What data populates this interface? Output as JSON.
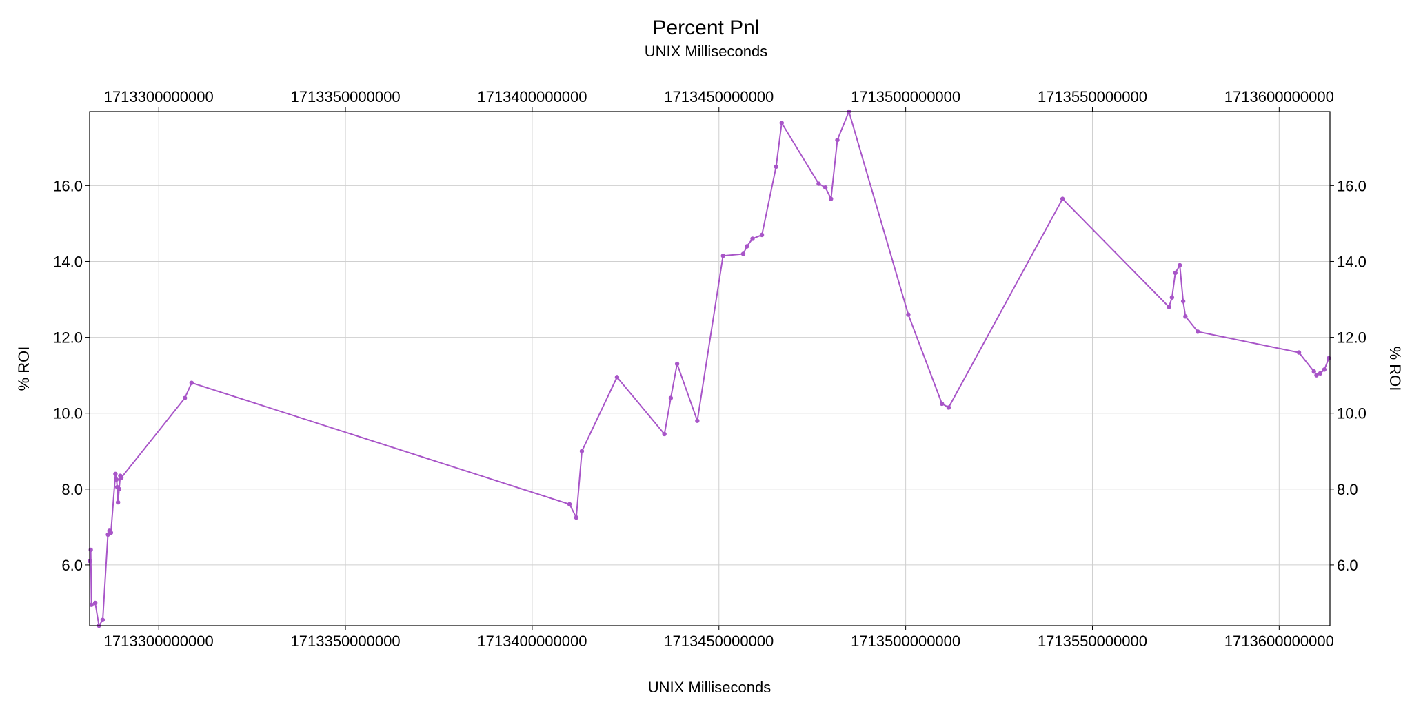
{
  "chart_data": {
    "type": "line",
    "title": "Percent Pnl",
    "subtitle": "UNIX Milliseconds",
    "xlabel": "UNIX Milliseconds",
    "ylabel": "% ROI",
    "ylabel_right": "% ROI",
    "xlim": [
      1713281500000,
      1713613600000
    ],
    "ylim": [
      4.4,
      17.95
    ],
    "x_ticks": [
      1713300000000,
      1713350000000,
      1713400000000,
      1713450000000,
      1713500000000,
      1713550000000,
      1713600000000
    ],
    "x_tick_labels": [
      "1713300000000",
      "1713350000000",
      "1713400000000",
      "1713450000000",
      "1713500000000",
      "1713550000000",
      "1713600000000"
    ],
    "y_ticks": [
      6.0,
      8.0,
      10.0,
      12.0,
      14.0,
      16.0
    ],
    "y_tick_labels": [
      "6.0",
      "8.0",
      "10.0",
      "12.0",
      "14.0",
      "16.0"
    ],
    "grid": true,
    "markers": true,
    "color": "#a855c8",
    "series": [
      {
        "x": [
          1713281600000,
          1713281800000,
          1713282000000,
          1713283000000,
          1713284000000,
          1713285000000,
          1713286400000,
          1713286800000,
          1713287200000,
          1713288400000,
          1713288700000,
          1713288900000,
          1713289100000,
          1713289400000,
          1713289700000,
          1713290000000,
          1713307000000,
          1713308800000,
          1713410000000,
          1713411800000,
          1713413300000,
          1713422700000,
          1713435400000,
          1713437100000,
          1713438800000,
          1713444200000,
          1713451100000,
          1713456500000,
          1713457500000,
          1713459000000,
          1713461500000,
          1713465300000,
          1713466800000,
          1713476700000,
          1713478500000,
          1713480000000,
          1713481700000,
          1713484800000,
          1713500700000,
          1713509700000,
          1713511500000,
          1713542000000,
          1713570500000,
          1713571300000,
          1713572200000,
          1713573400000,
          1713574300000,
          1713574900000,
          1713578200000,
          1713605300000,
          1713609300000,
          1713610000000,
          1713611000000,
          1713612100000,
          1713613300000
        ],
        "y": [
          6.1,
          6.4,
          4.95,
          5.0,
          4.4,
          4.55,
          6.8,
          6.9,
          6.85,
          8.4,
          8.25,
          8.05,
          7.65,
          8.0,
          8.35,
          8.3,
          10.4,
          10.8,
          7.6,
          7.25,
          9.0,
          10.95,
          9.45,
          10.4,
          11.3,
          9.8,
          14.15,
          14.2,
          14.4,
          14.6,
          14.7,
          16.5,
          17.65,
          16.05,
          15.95,
          15.65,
          17.2,
          17.95,
          12.6,
          10.25,
          10.15,
          15.65,
          12.8,
          13.05,
          13.7,
          13.9,
          12.95,
          12.55,
          12.15,
          11.6,
          11.1,
          11.0,
          11.05,
          11.15,
          11.45
        ]
      }
    ]
  }
}
